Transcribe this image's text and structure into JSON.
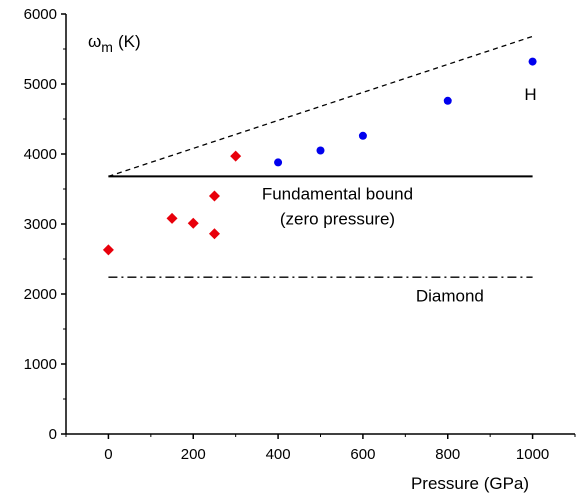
{
  "chart_data": {
    "type": "scatter",
    "title": "",
    "xlabel": "Pressure (GPa)",
    "ylabel": "",
    "ylabel_symbol": "ω",
    "ylabel_subscript": "m",
    "ylabel_unit": "(K)",
    "xlim": [
      -100,
      1100
    ],
    "ylim": [
      0,
      6000
    ],
    "xticks": [
      0,
      200,
      400,
      600,
      800,
      1000
    ],
    "yticks": [
      0,
      1000,
      2000,
      3000,
      4000,
      5000,
      6000
    ],
    "xtick_labels": [
      "0",
      "200",
      "400",
      "600",
      "800",
      "1000"
    ],
    "ytick_labels": [
      "0",
      "1000",
      "2000",
      "3000",
      "4000",
      "5000",
      "6000"
    ],
    "grid": false,
    "series": [
      {
        "marker": "diamond",
        "color": "#e8000b",
        "points": [
          {
            "x": 0,
            "y": 2630
          },
          {
            "x": 150,
            "y": 3080
          },
          {
            "x": 200,
            "y": 3010
          },
          {
            "x": 250,
            "y": 3400
          },
          {
            "x": 250,
            "y": 2860
          },
          {
            "x": 300,
            "y": 3970
          }
        ]
      },
      {
        "marker": "circle",
        "color": "#0000ee",
        "points": [
          {
            "x": 400,
            "y": 3880
          },
          {
            "x": 500,
            "y": 4050
          },
          {
            "x": 600,
            "y": 4260
          },
          {
            "x": 800,
            "y": 4760
          },
          {
            "x": 1000,
            "y": 5320
          }
        ]
      }
    ],
    "reference_lines": [
      {
        "style": "dashed",
        "from": {
          "x": 0,
          "y": 3680
        },
        "to": {
          "x": 1000,
          "y": 5680
        }
      },
      {
        "style": "solid",
        "from": {
          "x": 0,
          "y": 3680
        },
        "to": {
          "x": 1000,
          "y": 3680
        }
      },
      {
        "style": "dash-dot",
        "from": {
          "x": 0,
          "y": 2240
        },
        "to": {
          "x": 1000,
          "y": 2240
        }
      }
    ],
    "annotations": [
      {
        "id": "h",
        "text": "H",
        "x": 995,
        "y": 4770
      },
      {
        "id": "fund1",
        "text": "Fundamental bound",
        "x": 540,
        "y": 3350
      },
      {
        "id": "fund2",
        "text": "(zero pressure)",
        "x": 540,
        "y": 2990
      },
      {
        "id": "diamond",
        "text": "Diamond",
        "x": 805,
        "y": 1890
      }
    ]
  }
}
